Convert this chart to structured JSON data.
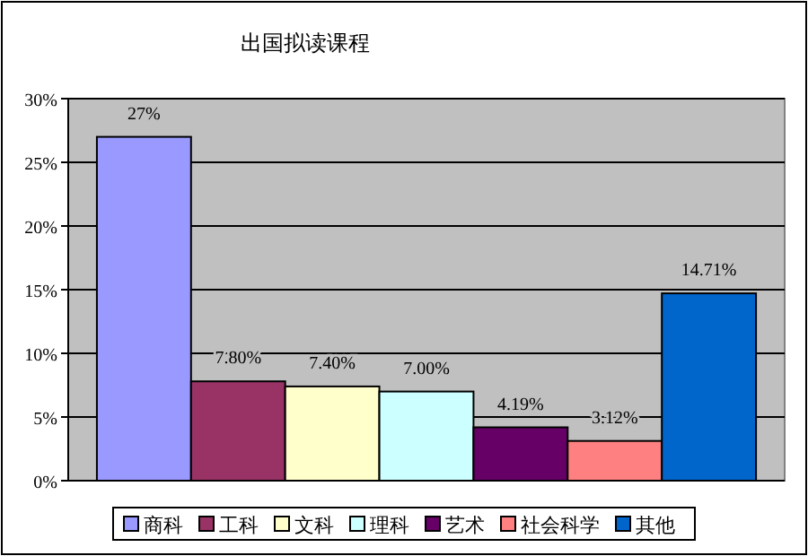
{
  "chart_data": {
    "type": "bar",
    "title": "出国拟读课程",
    "categories": [
      null
    ],
    "series": [
      {
        "name": "商科",
        "color": "#9999ff",
        "values": [
          27
        ],
        "value_labels": [
          "27%"
        ]
      },
      {
        "name": "工科",
        "color": "#993366",
        "values": [
          7.8
        ],
        "value_labels": [
          "7.80%"
        ]
      },
      {
        "name": "文科",
        "color": "#ffffcc",
        "values": [
          7.4
        ],
        "value_labels": [
          "7.40%"
        ]
      },
      {
        "name": "理科",
        "color": "#ccffff",
        "values": [
          7.0
        ],
        "value_labels": [
          "7.00%"
        ]
      },
      {
        "name": "艺术",
        "color": "#660066",
        "values": [
          4.19
        ],
        "value_labels": [
          "4.19%"
        ]
      },
      {
        "name": "社会科学",
        "color": "#ff8080",
        "values": [
          3.12
        ],
        "value_labels": [
          "3.12%"
        ]
      },
      {
        "name": "其他",
        "color": "#0066cc",
        "values": [
          14.71
        ],
        "value_labels": [
          "14.71%"
        ]
      }
    ],
    "ylim": [
      0,
      30
    ],
    "yticks": [
      {
        "value": 0,
        "label": "0%"
      },
      {
        "value": 5,
        "label": "5%"
      },
      {
        "value": 10,
        "label": "10%"
      },
      {
        "value": 15,
        "label": "15%"
      },
      {
        "value": 20,
        "label": "20%"
      },
      {
        "value": 25,
        "label": "25%"
      },
      {
        "value": 30,
        "label": "30%"
      }
    ],
    "grid": "y",
    "legend": "bottom"
  }
}
